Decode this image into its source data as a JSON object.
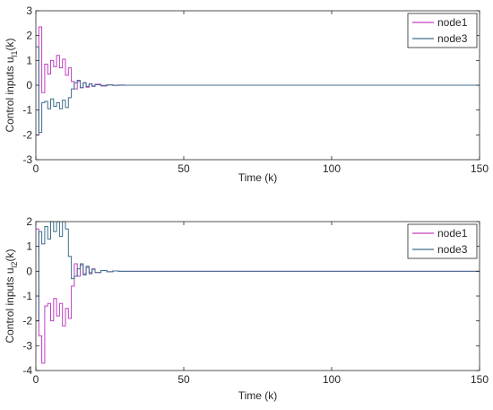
{
  "chart_data": [
    {
      "type": "line",
      "step": true,
      "xlabel": "Time (k)",
      "ylabel_main": "Control inputs u",
      "ylabel_sub": "l1",
      "ylabel_suffix": "(k)",
      "xlim": [
        0,
        150
      ],
      "ylim": [
        -3,
        3
      ],
      "xticks": [
        0,
        50,
        100,
        150
      ],
      "yticks": [
        -3,
        -2,
        -1,
        0,
        1,
        2,
        3
      ],
      "grid": false,
      "legend_position": "top-right",
      "series": [
        {
          "name": "node1",
          "color": "#bf40bf",
          "x": [
            0,
            1,
            2,
            3,
            4,
            5,
            6,
            7,
            8,
            9,
            10,
            11,
            12,
            13,
            14,
            15,
            16,
            17,
            18,
            19,
            20,
            22,
            24,
            26,
            28,
            30,
            35,
            40,
            150
          ],
          "y": [
            -2.0,
            2.35,
            -0.3,
            0.85,
            0.45,
            1.0,
            0.75,
            1.2,
            0.7,
            1.05,
            0.4,
            0.7,
            0.15,
            -0.15,
            0.15,
            -0.1,
            0.1,
            -0.08,
            0.06,
            -0.05,
            0.04,
            -0.03,
            0.02,
            -0.01,
            0.01,
            0.0,
            0.0,
            0.0,
            0.0
          ]
        },
        {
          "name": "node3",
          "color": "#3c6e8c",
          "x": [
            0,
            1,
            2,
            3,
            4,
            5,
            6,
            7,
            8,
            9,
            10,
            11,
            12,
            13,
            14,
            15,
            16,
            17,
            18,
            19,
            20,
            22,
            24,
            26,
            28,
            30,
            35,
            40,
            150
          ],
          "y": [
            1.55,
            -1.9,
            -0.7,
            -0.65,
            -0.95,
            -0.55,
            -0.85,
            -0.7,
            -0.95,
            -0.6,
            -0.9,
            -0.5,
            -0.15,
            0.1,
            0.2,
            -0.1,
            0.1,
            -0.05,
            0.05,
            -0.03,
            0.02,
            -0.01,
            0.01,
            0.0,
            0.0,
            0.0,
            0.0,
            0.0,
            0.0
          ]
        }
      ]
    },
    {
      "type": "line",
      "step": true,
      "xlabel": "Time (k)",
      "ylabel_main": "Control inputs u",
      "ylabel_sub": "l2",
      "ylabel_suffix": "(k)",
      "xlim": [
        0,
        150
      ],
      "ylim": [
        -4,
        2
      ],
      "xticks": [
        0,
        50,
        100,
        150
      ],
      "yticks": [
        -4,
        -3,
        -2,
        -1,
        0,
        1,
        2
      ],
      "grid": false,
      "legend_position": "top-right",
      "series": [
        {
          "name": "node1",
          "color": "#bf40bf",
          "x": [
            0,
            1,
            2,
            3,
            4,
            5,
            6,
            7,
            8,
            9,
            10,
            11,
            12,
            13,
            14,
            15,
            16,
            17,
            18,
            19,
            20,
            22,
            24,
            26,
            28,
            30,
            35,
            40,
            150
          ],
          "y": [
            1.7,
            -2.6,
            -3.7,
            -1.4,
            -1.3,
            -2.0,
            -1.1,
            -1.8,
            -1.3,
            -2.2,
            -1.5,
            -1.9,
            -0.6,
            0.3,
            -0.2,
            0.25,
            -0.1,
            0.15,
            -0.05,
            0.1,
            -0.05,
            0.03,
            -0.02,
            0.01,
            0.0,
            0.0,
            0.0,
            0.0,
            0.0
          ]
        },
        {
          "name": "node3",
          "color": "#3c6e8c",
          "x": [
            0,
            1,
            2,
            3,
            4,
            5,
            6,
            7,
            8,
            9,
            10,
            11,
            12,
            13,
            14,
            15,
            16,
            17,
            18,
            19,
            20,
            22,
            24,
            26,
            28,
            30,
            35,
            40,
            150
          ],
          "y": [
            -2.0,
            1.6,
            1.1,
            1.8,
            1.3,
            2.0,
            1.6,
            2.0,
            1.4,
            2.0,
            1.7,
            0.6,
            -0.3,
            -0.2,
            0.1,
            0.3,
            -0.15,
            0.2,
            -0.1,
            0.08,
            -0.05,
            0.03,
            -0.02,
            0.01,
            0.0,
            0.0,
            0.0,
            0.0,
            0.0
          ]
        }
      ]
    }
  ]
}
